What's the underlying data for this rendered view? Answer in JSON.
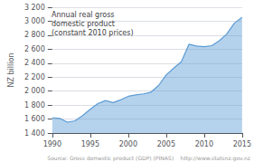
{
  "chart_data": {
    "type": "area",
    "title": "Annual real gross\ndomestic product\n(constant 2010 prices)",
    "y_label": "NZ billion",
    "annotations": [
      "Source: Gross domestic product (GDP) (PINAS)    http://www.statsnz.gov.nz"
    ],
    "x": [
      1990,
      1991,
      1992,
      1993,
      1994,
      1995,
      1996,
      1997,
      1998,
      1999,
      2000,
      2001,
      2002,
      2003,
      2004,
      2005,
      2006,
      2007,
      2008,
      2009,
      2010,
      2011,
      2012,
      2013,
      2014,
      2015
    ],
    "values": [
      1620,
      1610,
      1555,
      1575,
      1650,
      1740,
      1820,
      1865,
      1835,
      1875,
      1925,
      1945,
      1960,
      1985,
      2080,
      2230,
      2330,
      2420,
      2670,
      2645,
      2635,
      2650,
      2720,
      2820,
      2975,
      3055
    ],
    "color": "#5b9bd5",
    "xlim": [
      1990,
      2015
    ],
    "xticks": [
      1990,
      1995,
      2000,
      2005,
      2010,
      2015
    ],
    "ylim": [
      1400,
      3200
    ],
    "yticks": [
      {
        "value": 1400,
        "label": "1 400"
      },
      {
        "value": 1600,
        "label": "1 600"
      },
      {
        "value": 1800,
        "label": "1 800"
      },
      {
        "value": 2000,
        "label": "2 000"
      },
      {
        "value": 2200,
        "label": "2 200"
      },
      {
        "value": 2400,
        "label": "2 400"
      },
      {
        "value": 2600,
        "label": "2 600"
      },
      {
        "value": 2800,
        "label": "2 800"
      },
      {
        "value": 3000,
        "label": "3 000"
      },
      {
        "value": 3200,
        "label": "3 200"
      }
    ],
    "grid": true
  }
}
